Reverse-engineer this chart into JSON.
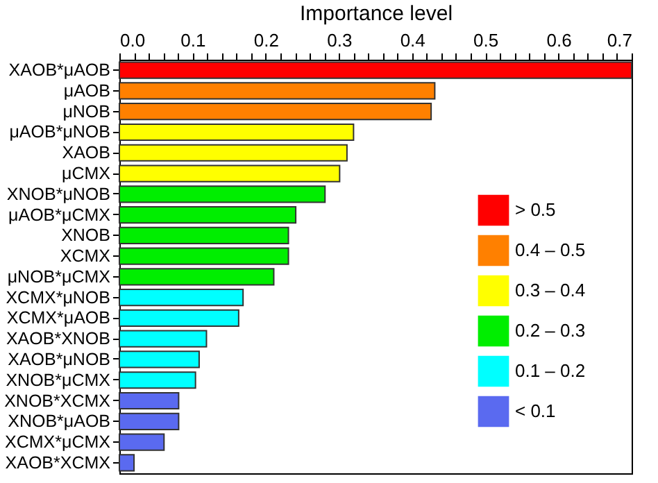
{
  "chart_data": {
    "type": "bar",
    "orientation": "horizontal",
    "xlabel": "Importance level",
    "categories": [
      "XAOB*μAOB",
      "μAOB",
      "μNOB",
      "μAOB*μNOB",
      "XAOB",
      "μCMX",
      "XNOB*μNOB",
      "μAOB*μCMX",
      "XNOB",
      "XCMX",
      "μNOB*μCMX",
      "XCMX*μNOB",
      "XCMX*μAOB",
      "XAOB*XNOB",
      "XAOB*μNOB",
      "XNOB*μCMX",
      "XNOB*XCMX",
      "XNOB*μAOB",
      "XCMX*μCMX",
      "XAOB*XCMX"
    ],
    "series": [
      {
        "name": "> 0.5",
        "color": "#ff0000",
        "values": [
          0.7,
          null,
          null,
          null,
          null,
          null,
          null,
          null,
          null,
          null,
          null,
          null,
          null,
          null,
          null,
          null,
          null,
          null,
          null,
          null
        ]
      },
      {
        "name": "0.4 – 0.5",
        "color": "#ff8000",
        "values": [
          null,
          0.431,
          0.426,
          null,
          null,
          null,
          null,
          null,
          null,
          null,
          null,
          null,
          null,
          null,
          null,
          null,
          null,
          null,
          null,
          null
        ]
      },
      {
        "name": "0.3 – 0.4",
        "color": "#ffff00",
        "values": [
          null,
          null,
          null,
          0.32,
          0.311,
          0.301,
          null,
          null,
          null,
          null,
          null,
          null,
          null,
          null,
          null,
          null,
          null,
          null,
          null,
          null
        ]
      },
      {
        "name": "0.2 – 0.3",
        "color": "#00ee00",
        "values": [
          null,
          null,
          null,
          null,
          null,
          null,
          0.281,
          0.241,
          0.231,
          0.231,
          0.211,
          null,
          null,
          null,
          null,
          null,
          null,
          null,
          null,
          null
        ]
      },
      {
        "name": "0.1 – 0.2",
        "color": "#00ffff",
        "values": [
          null,
          null,
          null,
          null,
          null,
          null,
          null,
          null,
          null,
          null,
          null,
          0.169,
          0.163,
          0.119,
          0.109,
          0.104,
          null,
          null,
          null,
          null
        ]
      },
      {
        "name": "< 0.1",
        "color": "#5a6af0",
        "values": [
          null,
          null,
          null,
          null,
          null,
          null,
          null,
          null,
          null,
          null,
          null,
          null,
          null,
          null,
          null,
          null,
          0.081,
          0.081,
          0.061,
          0.02
        ]
      }
    ],
    "xlim": [
      0,
      0.7
    ],
    "xticks": [
      {
        "value": 0,
        "label": "0.0"
      },
      {
        "value": 0.02,
        "label": null
      },
      {
        "value": 0.04,
        "label": null
      },
      {
        "value": 0.06,
        "label": null
      },
      {
        "value": 0.08,
        "label": null
      },
      0.1,
      {
        "value": 0.12,
        "label": null
      },
      {
        "value": 0.14,
        "label": null
      },
      {
        "value": 0.16,
        "label": null
      },
      {
        "value": 0.18,
        "label": null
      },
      0.2,
      {
        "value": 0.22,
        "label": null
      },
      {
        "value": 0.24,
        "label": null
      },
      {
        "value": 0.26,
        "label": null
      },
      {
        "value": 0.28,
        "label": null
      },
      0.3,
      {
        "value": 0.32,
        "label": null
      },
      {
        "value": 0.34,
        "label": null
      },
      {
        "value": 0.36,
        "label": null
      },
      {
        "value": 0.38,
        "label": null
      },
      0.4,
      {
        "value": 0.42,
        "label": null
      },
      {
        "value": 0.44,
        "label": null
      },
      {
        "value": 0.46,
        "label": null
      },
      {
        "value": 0.48,
        "label": null
      },
      0.5,
      {
        "value": 0.52,
        "label": null
      },
      {
        "value": 0.54,
        "label": null
      },
      {
        "value": 0.56,
        "label": null
      },
      {
        "value": 0.58,
        "label": null
      },
      0.6,
      {
        "value": 0.62,
        "label": null
      },
      {
        "value": 0.64,
        "label": null
      },
      {
        "value": 0.66,
        "label": null
      },
      {
        "value": 0.68,
        "label": null
      },
      0.7
    ],
    "legend": "bottom right"
  }
}
